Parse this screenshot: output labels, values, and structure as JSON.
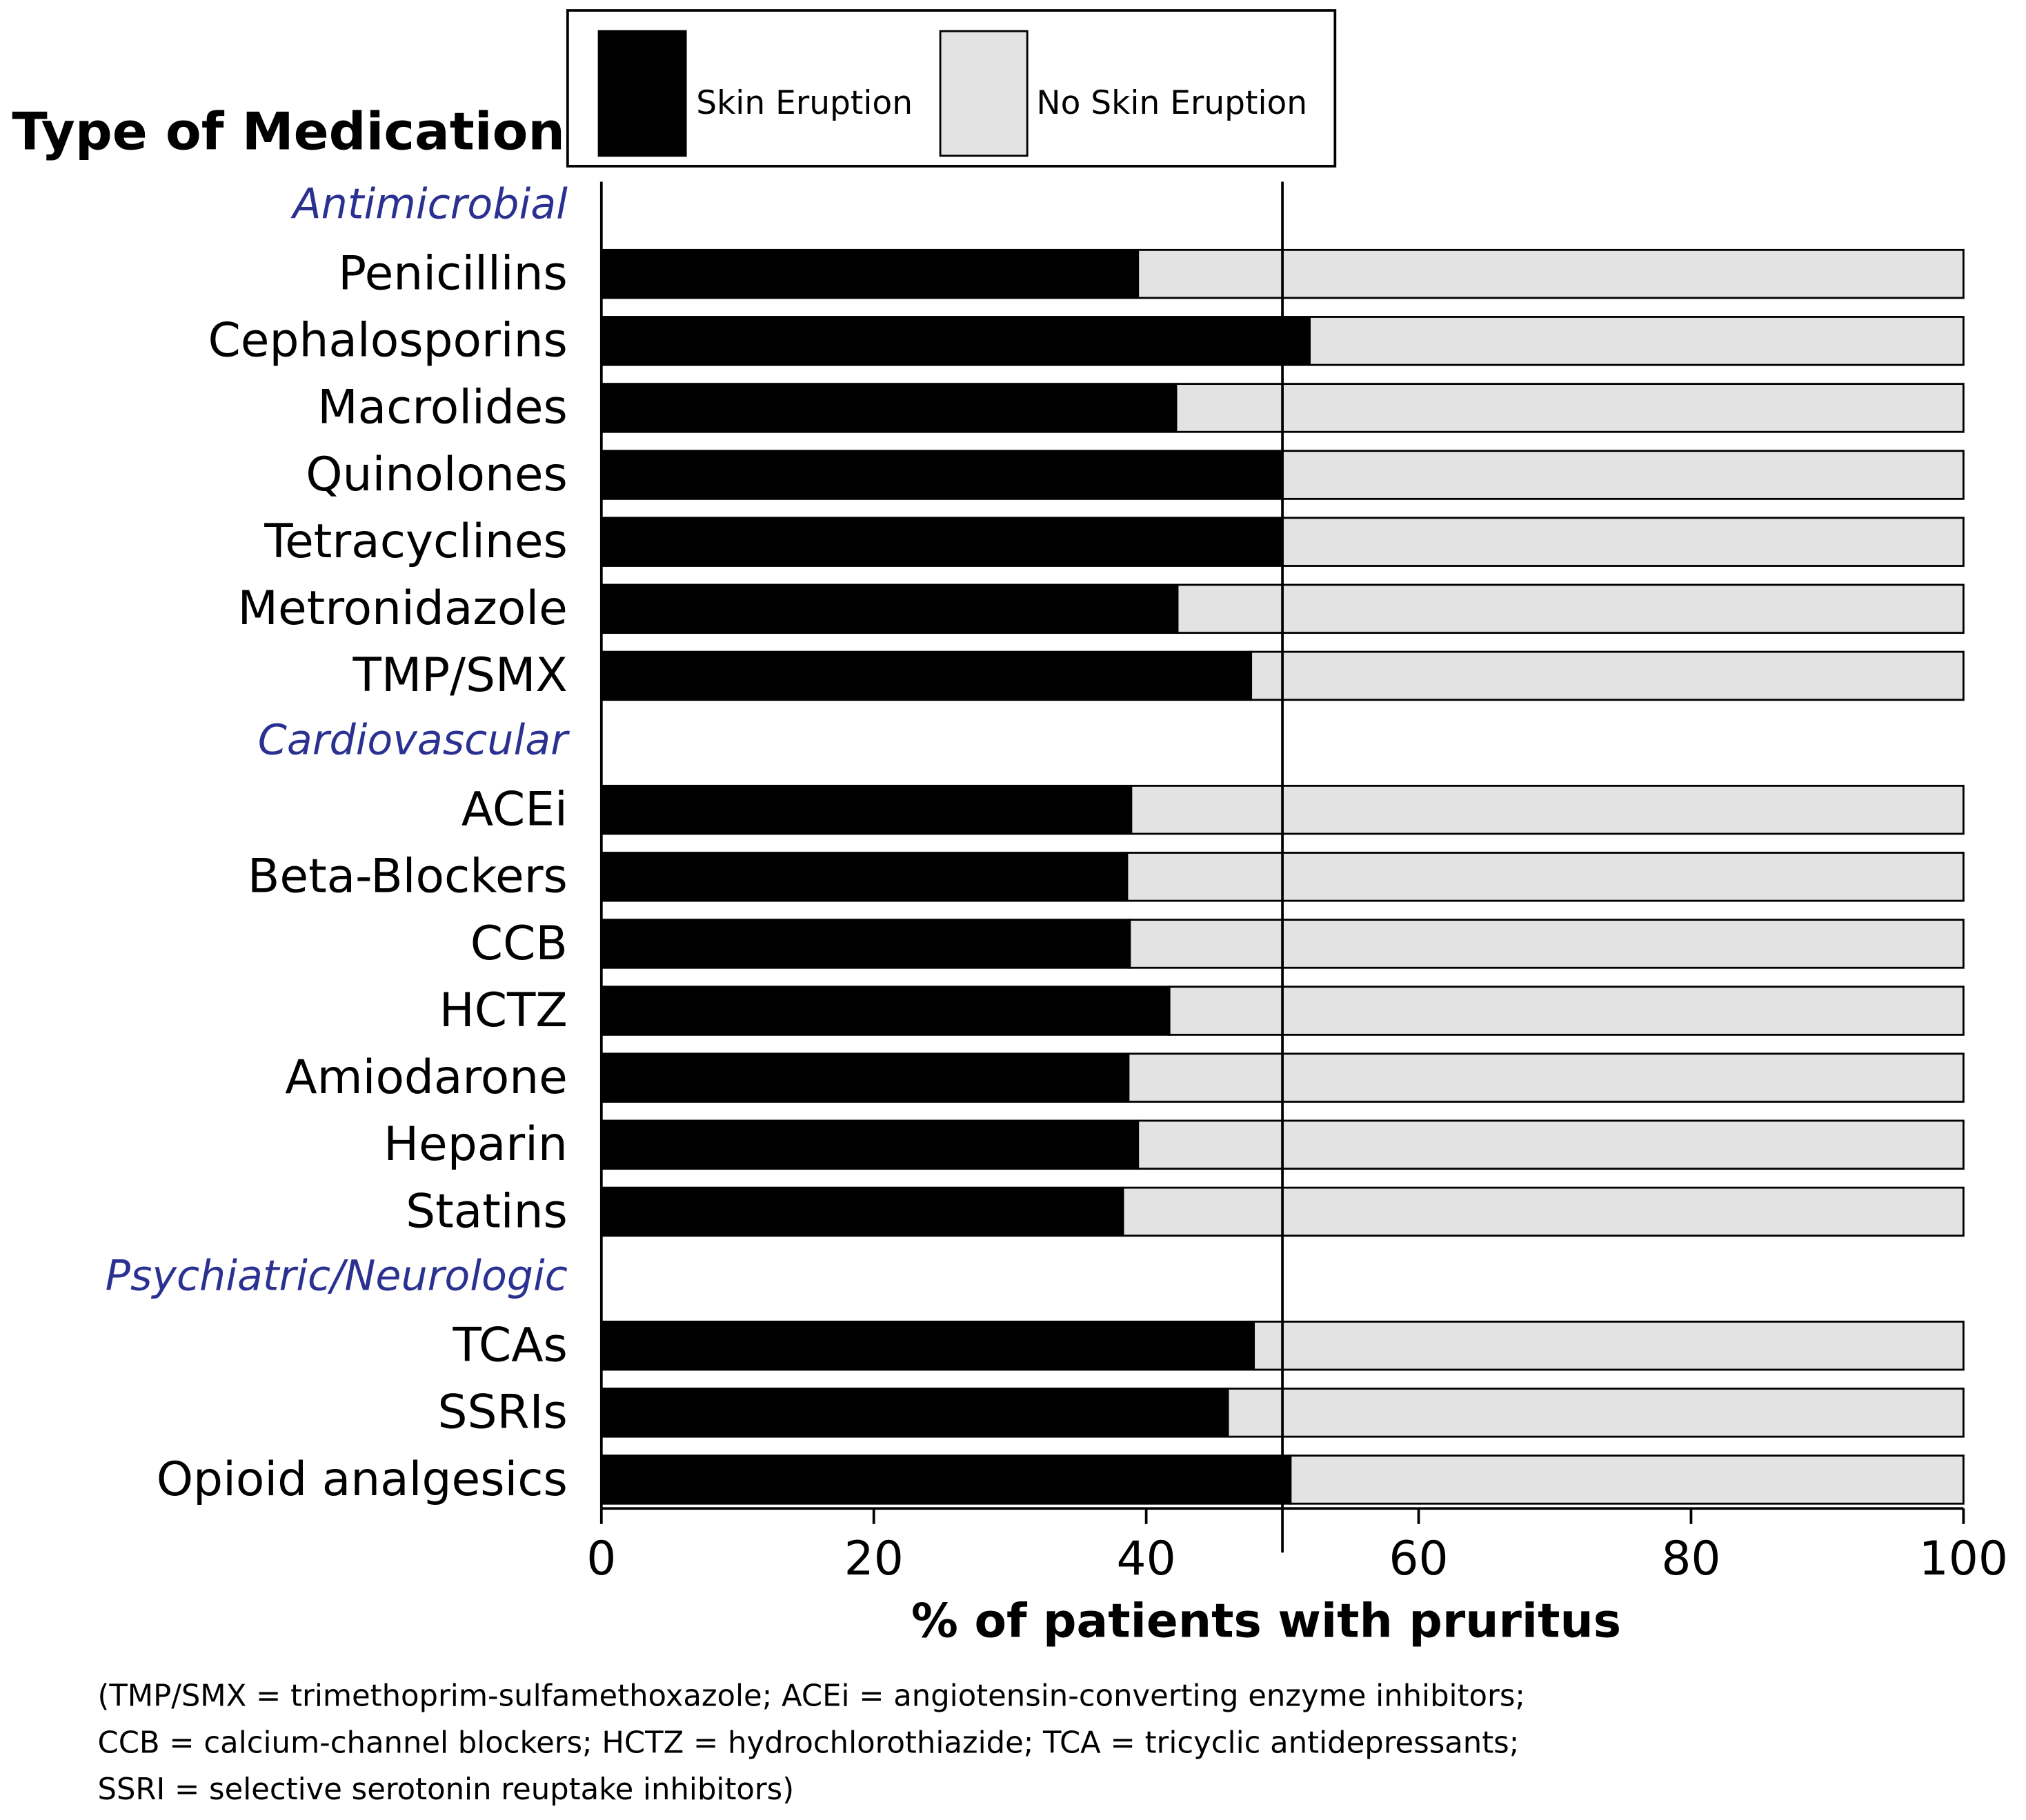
{
  "chart_data": {
    "type": "stacked-barh",
    "ylabel": "Type of Medication",
    "xlabel": "% of patients with pruritus",
    "category_groups": [
      {
        "name": "Antimicrobial",
        "categories": [
          "Penicillins",
          "Cephalosporins",
          "Macrolides",
          "Quinolones",
          "Tetracyclines",
          "Metronidazole",
          "TMP/SMX"
        ]
      },
      {
        "name": "Cardiovascular",
        "categories": [
          "ACEi",
          "Beta-Blockers",
          "CCB",
          "HCTZ",
          "Amiodarone",
          "Heparin",
          "Statins"
        ]
      },
      {
        "name": "Psychiatric/Neurologic",
        "categories": [
          "TCAs",
          "SSRIs",
          "Opioid analgesics"
        ]
      }
    ],
    "series": [
      {
        "name": "Skin Eruption",
        "color": "#000000",
        "values": [
          39.4,
          52.0,
          42.2,
          50.0,
          50.0,
          42.3,
          47.7,
          38.9,
          38.6,
          38.8,
          41.7,
          38.7,
          39.4,
          38.3,
          47.9,
          46.0,
          50.6
        ]
      },
      {
        "name": "No Skin Eruption",
        "color": "#e3e3e3",
        "values": [
          60.6,
          48.0,
          57.8,
          50.0,
          50.0,
          57.7,
          52.3,
          61.1,
          61.4,
          61.2,
          58.3,
          61.3,
          60.6,
          61.7,
          52.1,
          54.0,
          49.4
        ]
      }
    ],
    "reference_line": 50,
    "xlim": [
      0,
      100
    ],
    "xticks": [
      0,
      20,
      40,
      60,
      80,
      100
    ],
    "footnote": [
      "(TMP/SMX = trimethoprim-sulfamethoxazole; ACEi = angiotensin-converting enzyme inhibitors;",
      "CCB = calcium-channel blockers; HCTZ = hydrochlorothiazide; TCA = tricyclic antidepressants;",
      "SSRI = selective serotonin reuptake inhibitors)"
    ]
  }
}
